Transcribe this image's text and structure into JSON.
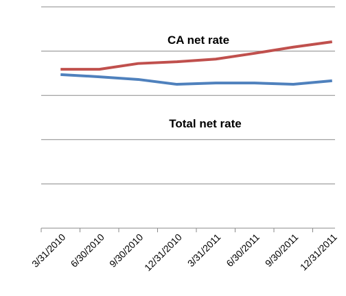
{
  "chart_data": {
    "type": "line",
    "categories": [
      "3/31/2010",
      "6/30/2010",
      "9/30/2010",
      "12/31/2010",
      "3/31/2011",
      "6/30/2011",
      "9/30/2011",
      "12/31/2011"
    ],
    "series": [
      {
        "name": "CA net rate",
        "color": "#c0504d",
        "values": [
          3.59,
          3.59,
          3.72,
          3.76,
          3.82,
          3.95,
          4.09,
          4.21
        ]
      },
      {
        "name": "Total net rate",
        "color": "#4f81bd",
        "values": [
          3.47,
          3.42,
          3.36,
          3.25,
          3.28,
          3.28,
          3.25,
          3.33
        ]
      }
    ],
    "ylim": [
      0,
      5
    ],
    "yticks": [
      0,
      1,
      2,
      3,
      4,
      5
    ],
    "grid": true
  }
}
